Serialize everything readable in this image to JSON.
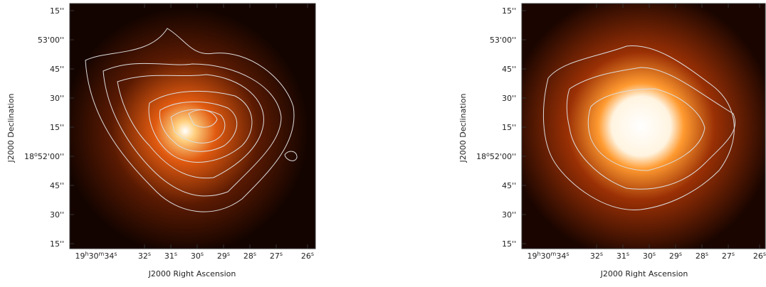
{
  "panels": [
    {
      "x_axis_label": "J2000 Right Ascension",
      "y_axis_label": "J2000 Declination",
      "x_ticks": [
        [
          "19",
          "h",
          "30",
          "m",
          "34",
          "s"
        ],
        [
          "32",
          "s"
        ],
        [
          "31",
          "s"
        ],
        [
          "30",
          "s"
        ],
        [
          "29",
          "s"
        ],
        [
          "28",
          "s"
        ],
        [
          "27",
          "s"
        ],
        [
          "26",
          "s"
        ]
      ],
      "y_ticks": [
        [
          "15''"
        ],
        [
          "53'00''"
        ],
        [
          "45''"
        ],
        [
          "30''"
        ],
        [
          "15''"
        ],
        [
          "18",
          "o",
          "52'00''"
        ],
        [
          "45''"
        ],
        [
          "30''"
        ],
        [
          "15''"
        ]
      ]
    },
    {
      "x_axis_label": "J2000 Right Ascension",
      "y_axis_label": "J2000 Declination",
      "x_ticks": [
        [
          "19",
          "h",
          "30",
          "m",
          "34",
          "s"
        ],
        [
          "32",
          "s"
        ],
        [
          "31",
          "s"
        ],
        [
          "30",
          "s"
        ],
        [
          "29",
          "s"
        ],
        [
          "28",
          "s"
        ],
        [
          "27",
          "s"
        ],
        [
          "26",
          "s"
        ]
      ],
      "y_ticks": [
        [
          "15''"
        ],
        [
          "53'00''"
        ],
        [
          "45''"
        ],
        [
          "30''"
        ],
        [
          "15''"
        ],
        [
          "18",
          "o",
          "52'00''"
        ],
        [
          "45''"
        ],
        [
          "30''"
        ],
        [
          "15''"
        ]
      ]
    }
  ]
}
